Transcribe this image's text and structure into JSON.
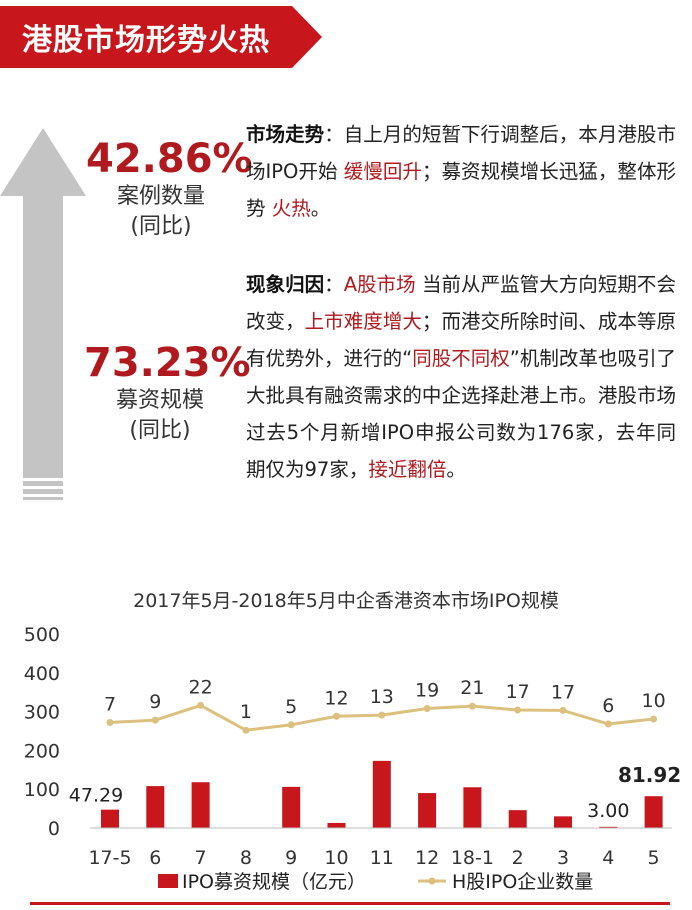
{
  "header": {
    "title": "港股市场形势火热"
  },
  "stats": [
    {
      "value": "42.86%",
      "label1": "案例数量",
      "label2": "(同比)"
    },
    {
      "value": "73.23%",
      "label1": "募资规模",
      "label2": "(同比)"
    }
  ],
  "para1": {
    "heading": "市场走势",
    "t1": "：自上月的短暂下行调整后，本月港股市场IPO开始 ",
    "r1": "缓慢回升",
    "t2": "；募资规模增长迅猛，整体形势 ",
    "r2": "火热",
    "t3": "。"
  },
  "para2": {
    "heading": "现象归因",
    "t0": "：",
    "r1": "A股市场",
    "t1": " 当前从严监管大方向短期不会改变，",
    "r2": "上市难度增大",
    "t2": "；而港交所除时间、成本等原有优势外，进行的“",
    "r3": "同股不同权",
    "t3": "”机制改革也吸引了大批具有融资需求的中企选择赴港上市。港股市场过去5个月新增IPO申报公司数为176家，去年同期仅为97家，",
    "r4": "接近翻倍",
    "t4": "。"
  },
  "colors": {
    "bar": "#c8161d",
    "line": "#dcc17e",
    "accent": "#b01a1e",
    "arrow": "#c4c4c4"
  },
  "chart_data": {
    "type": "bar",
    "title": "2017年5月-2018年5月中企香港资本市场IPO规模",
    "categories": [
      "17-5",
      "6",
      "7",
      "8",
      "9",
      "10",
      "11",
      "12",
      "18-1",
      "2",
      "3",
      "4",
      "5"
    ],
    "ylim": [
      0,
      500
    ],
    "yticks": [
      0,
      100,
      200,
      300,
      400,
      500
    ],
    "series": [
      {
        "name": "IPO募资规模（亿元）",
        "type": "bar",
        "values": [
          47.29,
          108,
          118,
          1,
          106,
          13,
          173,
          90,
          105,
          46,
          30,
          3.0,
          81.92
        ],
        "labels": [
          "47.29",
          "",
          "",
          "",
          "",
          "",
          "",
          "",
          "",
          "",
          "",
          "3.00",
          "81.92"
        ]
      },
      {
        "name": "H股IPO企业数量",
        "type": "line",
        "values": [
          7,
          9,
          22,
          1,
          5,
          12,
          13,
          19,
          21,
          17,
          17,
          6,
          10
        ],
        "plot_y": [
          272,
          278,
          316,
          252,
          266,
          288,
          291,
          308,
          314,
          304,
          303,
          268,
          281
        ]
      }
    ]
  }
}
